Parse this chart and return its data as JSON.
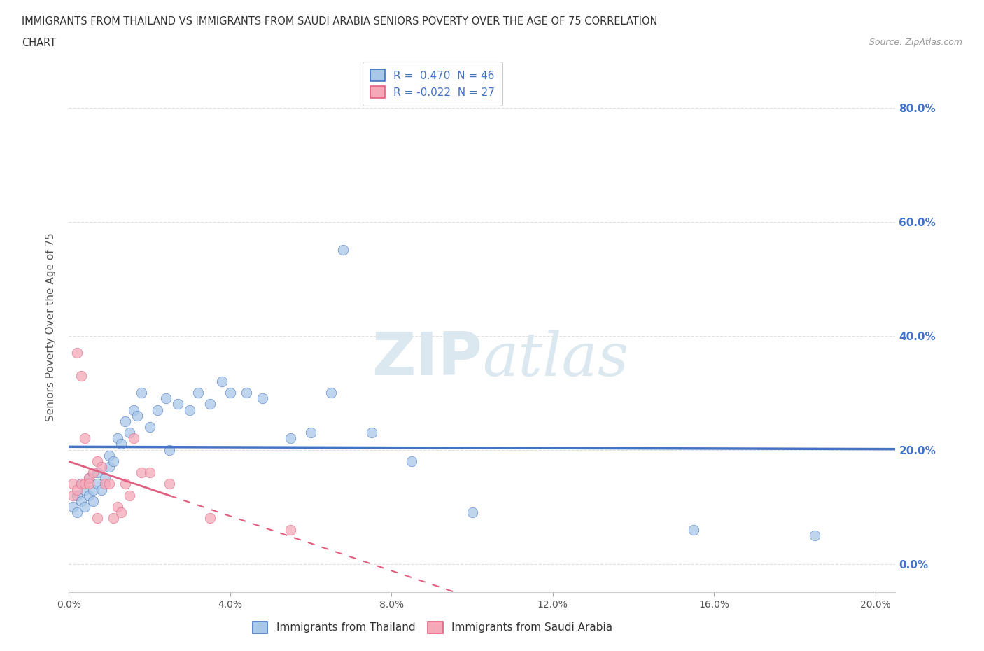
{
  "title_line1": "IMMIGRANTS FROM THAILAND VS IMMIGRANTS FROM SAUDI ARABIA SENIORS POVERTY OVER THE AGE OF 75 CORRELATION",
  "title_line2": "CHART",
  "source": "Source: ZipAtlas.com",
  "ylabel": "Seniors Poverty Over the Age of 75",
  "xlim": [
    0.0,
    0.205
  ],
  "ylim": [
    -0.05,
    0.88
  ],
  "xticks": [
    0.0,
    0.04,
    0.08,
    0.12,
    0.16,
    0.2
  ],
  "yticks": [
    0.0,
    0.2,
    0.4,
    0.6,
    0.8
  ],
  "ytick_labels_right": [
    "0.0%",
    "20.0%",
    "40.0%",
    "60.0%",
    "80.0%"
  ],
  "xtick_labels": [
    "0.0%",
    "4.0%",
    "8.0%",
    "12.0%",
    "16.0%",
    "20.0%"
  ],
  "legend_r1": "R =  0.470  N = 46",
  "legend_r2": "R = -0.022  N = 27",
  "thailand_color": "#a8c8e8",
  "saudi_color": "#f4a8b8",
  "regression_blue": "#4472c4",
  "regression_pink": "#e06080",
  "watermark_color": "#dce8f0",
  "thailand_x": [
    0.001,
    0.002,
    0.002,
    0.003,
    0.003,
    0.004,
    0.004,
    0.005,
    0.005,
    0.006,
    0.006,
    0.007,
    0.007,
    0.008,
    0.009,
    0.01,
    0.01,
    0.011,
    0.012,
    0.013,
    0.014,
    0.015,
    0.016,
    0.017,
    0.018,
    0.02,
    0.022,
    0.024,
    0.025,
    0.027,
    0.03,
    0.032,
    0.035,
    0.038,
    0.04,
    0.044,
    0.048,
    0.055,
    0.06,
    0.065,
    0.068,
    0.075,
    0.085,
    0.1,
    0.155,
    0.185
  ],
  "thailand_y": [
    0.1,
    0.12,
    0.09,
    0.11,
    0.14,
    0.1,
    0.13,
    0.12,
    0.15,
    0.13,
    0.11,
    0.14,
    0.16,
    0.13,
    0.15,
    0.17,
    0.19,
    0.18,
    0.22,
    0.21,
    0.25,
    0.23,
    0.27,
    0.26,
    0.3,
    0.24,
    0.27,
    0.29,
    0.2,
    0.28,
    0.27,
    0.3,
    0.28,
    0.32,
    0.3,
    0.3,
    0.29,
    0.22,
    0.23,
    0.3,
    0.55,
    0.23,
    0.18,
    0.09,
    0.06,
    0.05
  ],
  "saudi_x": [
    0.001,
    0.001,
    0.002,
    0.002,
    0.003,
    0.003,
    0.004,
    0.004,
    0.005,
    0.005,
    0.006,
    0.007,
    0.007,
    0.008,
    0.009,
    0.01,
    0.011,
    0.012,
    0.013,
    0.014,
    0.015,
    0.016,
    0.018,
    0.02,
    0.025,
    0.035,
    0.055
  ],
  "saudi_y": [
    0.12,
    0.14,
    0.13,
    0.37,
    0.33,
    0.14,
    0.14,
    0.22,
    0.15,
    0.14,
    0.16,
    0.18,
    0.08,
    0.17,
    0.14,
    0.14,
    0.08,
    0.1,
    0.09,
    0.14,
    0.12,
    0.22,
    0.16,
    0.16,
    0.14,
    0.08,
    0.06
  ],
  "background_color": "#ffffff",
  "grid_color": "#cccccc"
}
